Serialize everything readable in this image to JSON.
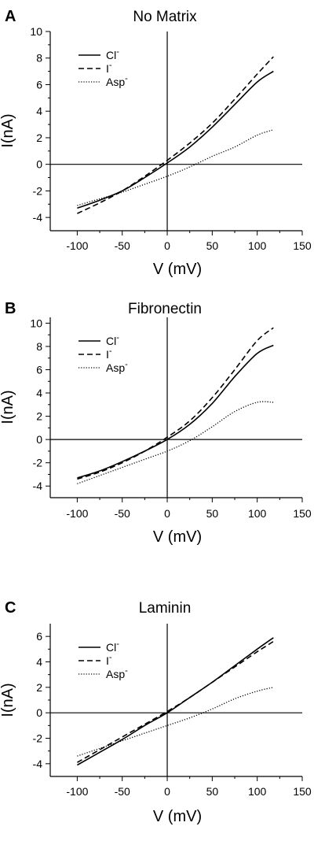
{
  "chart_data": [
    {
      "type": "line",
      "panel_label": "A",
      "title": "No Matrix",
      "xlabel": "V (mV)",
      "ylabel": "I(nA)",
      "xlim": [
        -130,
        150
      ],
      "ylim": [
        -5,
        10
      ],
      "xticks": [
        -100,
        -50,
        0,
        50,
        100,
        150
      ],
      "yticks": [
        -4,
        -2,
        0,
        2,
        4,
        6,
        8,
        10
      ],
      "legend_position": "top-left",
      "grid": false,
      "series": [
        {
          "name": "Cl-",
          "legend_main": "Cl",
          "legend_sup": "-",
          "style": "solid",
          "x": [
            -100,
            -75,
            -50,
            -25,
            0,
            25,
            50,
            75,
            100,
            118
          ],
          "y": [
            -3.3,
            -2.7,
            -2.0,
            -1.0,
            0.1,
            1.3,
            2.8,
            4.5,
            6.2,
            7.0
          ]
        },
        {
          "name": "I-",
          "legend_main": "I",
          "legend_sup": "-",
          "style": "dashed",
          "x": [
            -100,
            -75,
            -50,
            -25,
            0,
            25,
            50,
            75,
            100,
            118
          ],
          "y": [
            -3.7,
            -2.9,
            -2.0,
            -0.9,
            0.3,
            1.6,
            3.1,
            4.9,
            6.8,
            8.1
          ]
        },
        {
          "name": "Asp-",
          "legend_main": "Asp",
          "legend_sup": "-",
          "style": "dotted",
          "x": [
            -100,
            -75,
            -50,
            -25,
            0,
            25,
            50,
            75,
            100,
            118
          ],
          "y": [
            -3.1,
            -2.6,
            -2.1,
            -1.5,
            -0.9,
            -0.2,
            0.6,
            1.3,
            2.2,
            2.6
          ]
        }
      ]
    },
    {
      "type": "line",
      "panel_label": "B",
      "title": "Fibronectin",
      "xlabel": "V (mV)",
      "ylabel": "I(nA)",
      "xlim": [
        -130,
        150
      ],
      "ylim": [
        -5,
        10.5
      ],
      "xticks": [
        -100,
        -50,
        0,
        50,
        100,
        150
      ],
      "yticks": [
        -4,
        -2,
        0,
        2,
        4,
        6,
        8,
        10
      ],
      "legend_position": "top-left",
      "grid": false,
      "series": [
        {
          "name": "Cl-",
          "legend_main": "Cl",
          "legend_sup": "-",
          "style": "solid",
          "x": [
            -100,
            -75,
            -50,
            -25,
            0,
            25,
            50,
            75,
            100,
            118
          ],
          "y": [
            -3.3,
            -2.7,
            -1.9,
            -1.0,
            0.0,
            1.3,
            3.1,
            5.4,
            7.4,
            8.1
          ]
        },
        {
          "name": "I-",
          "legend_main": "I",
          "legend_sup": "-",
          "style": "dashed",
          "x": [
            -100,
            -75,
            -50,
            -25,
            0,
            25,
            50,
            75,
            100,
            118
          ],
          "y": [
            -3.4,
            -2.8,
            -2.0,
            -1.0,
            0.2,
            1.6,
            3.6,
            6.0,
            8.5,
            9.6
          ]
        },
        {
          "name": "Asp-",
          "legend_main": "Asp",
          "legend_sup": "-",
          "style": "dotted",
          "x": [
            -100,
            -75,
            -50,
            -25,
            0,
            25,
            50,
            75,
            100,
            118
          ],
          "y": [
            -3.8,
            -3.1,
            -2.4,
            -1.7,
            -1.0,
            -0.1,
            1.1,
            2.4,
            3.2,
            3.2
          ]
        }
      ]
    },
    {
      "type": "line",
      "panel_label": "C",
      "title": "Laminin",
      "xlabel": "V (mV)",
      "ylabel": "I(nA)",
      "xlim": [
        -130,
        150
      ],
      "ylim": [
        -5,
        7
      ],
      "xticks": [
        -100,
        -50,
        0,
        50,
        100,
        150
      ],
      "yticks": [
        -4,
        -2,
        0,
        2,
        4,
        6
      ],
      "legend_position": "top-left",
      "grid": false,
      "series": [
        {
          "name": "Cl-",
          "legend_main": "Cl",
          "legend_sup": "-",
          "style": "solid",
          "x": [
            -100,
            -75,
            -50,
            -25,
            0,
            25,
            50,
            75,
            100,
            118
          ],
          "y": [
            -4.1,
            -3.1,
            -2.1,
            -1.0,
            0.0,
            1.2,
            2.4,
            3.7,
            5.0,
            5.9
          ]
        },
        {
          "name": "I-",
          "legend_main": "I",
          "legend_sup": "-",
          "style": "dashed",
          "x": [
            -100,
            -75,
            -50,
            -25,
            0,
            25,
            50,
            75,
            100,
            118
          ],
          "y": [
            -3.9,
            -2.9,
            -1.9,
            -0.9,
            0.1,
            1.2,
            2.4,
            3.6,
            4.8,
            5.6
          ]
        },
        {
          "name": "Asp-",
          "legend_main": "Asp",
          "legend_sup": "-",
          "style": "dotted",
          "x": [
            -100,
            -75,
            -50,
            -25,
            0,
            25,
            50,
            75,
            100,
            118
          ],
          "y": [
            -3.4,
            -2.8,
            -2.2,
            -1.6,
            -1.0,
            -0.4,
            0.3,
            1.1,
            1.7,
            2.0
          ]
        }
      ]
    }
  ]
}
